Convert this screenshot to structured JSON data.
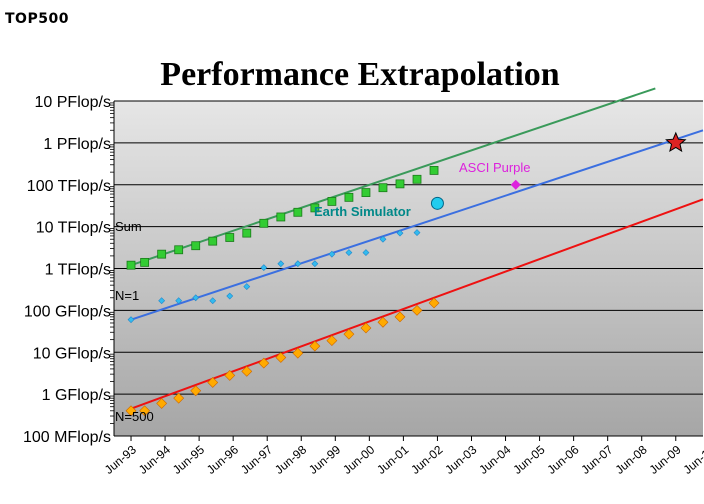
{
  "logo_text": "TOP500",
  "chart_data": {
    "type": "scatter",
    "title": "Performance Extrapolation",
    "y_scale": "log",
    "y_tick_labels": [
      "100 MFlop/s",
      "1 GFlop/s",
      "10 GFlop/s",
      "100 GFlop/s",
      "1 TFlop/s",
      "10 TFlop/s",
      "100 TFlop/s",
      "1 PFlop/s",
      "10 PFlop/s"
    ],
    "ylim_gflops": [
      0.1,
      10000000
    ],
    "x_tick_labels": [
      "Jun-93",
      "Jun-94",
      "Jun-95",
      "Jun-96",
      "Jun-97",
      "Jun-98",
      "Jun-99",
      "Jun-00",
      "Jun-01",
      "Jun-02",
      "Jun-03",
      "Jun-04",
      "Jun-05",
      "Jun-06",
      "Jun-07",
      "Jun-08",
      "Jun-09",
      "Jun-10"
    ],
    "xlim_year": [
      1993.0,
      2010.3
    ],
    "grid": true,
    "series": [
      {
        "name": "Sum",
        "color": "#3a9a5a",
        "marker": "square",
        "marker_color": "#33cc33",
        "x": [
          1993.5,
          1993.9,
          1994.4,
          1994.9,
          1995.4,
          1995.9,
          1996.4,
          1996.9,
          1997.4,
          1997.9,
          1998.4,
          1998.9,
          1999.4,
          1999.9,
          2000.4,
          2000.9,
          2001.4,
          2001.9,
          2002.4
        ],
        "values": [
          1200,
          1400,
          2200,
          2800,
          3500,
          4500,
          5500,
          7000,
          12000,
          17000,
          22000,
          28000,
          40000,
          50000,
          65000,
          85000,
          105000,
          135000,
          220000
        ],
        "trend": {
          "start": [
            1993.5,
            1200
          ],
          "end": [
            2008.9,
            20000000
          ]
        }
      },
      {
        "name": "N=1",
        "color": "#3b6fe0",
        "marker": "diamond",
        "marker_color": "#33bbee",
        "x": [
          1993.5,
          1994.4,
          1994.9,
          1995.4,
          1995.9,
          1996.4,
          1996.9,
          1997.4,
          1997.9,
          1998.4,
          1998.9,
          1999.4,
          1999.9,
          2000.4,
          2000.9,
          2001.4,
          2001.9
        ],
        "values": [
          60,
          170,
          170,
          200,
          170,
          220,
          370,
          1050,
          1300,
          1300,
          1300,
          2200,
          2400,
          2400,
          5000,
          7000,
          7200
        ],
        "trend": {
          "start": [
            1993.5,
            60
          ],
          "end": [
            2010.3,
            2000000
          ]
        }
      },
      {
        "name": "N=500",
        "color": "#ee1111",
        "marker": "diamond",
        "marker_color": "#ffaa00",
        "x": [
          1993.5,
          1993.9,
          1994.4,
          1994.9,
          1995.4,
          1995.9,
          1996.4,
          1996.9,
          1997.4,
          1997.9,
          1998.4,
          1998.9,
          1999.4,
          1999.9,
          2000.4,
          2000.9,
          2001.4,
          2001.9,
          2002.4
        ],
        "values": [
          0.4,
          0.4,
          0.6,
          0.8,
          1.2,
          1.9,
          2.8,
          3.5,
          5.5,
          7.5,
          9.5,
          14,
          19,
          27,
          38,
          52,
          70,
          100,
          150
        ],
        "trend": {
          "start": [
            1993.5,
            0.45
          ],
          "end": [
            2010.3,
            45000
          ]
        }
      }
    ],
    "annotations": [
      {
        "label": "Earth Simulator",
        "x": 2002.5,
        "value": 36000,
        "marker": "circle",
        "color": "#008888",
        "marker_color": "#22ccee"
      },
      {
        "label": "ASCI Purple",
        "x": 2004.8,
        "value": 100000,
        "marker": "diamond",
        "color": "#dd22dd",
        "marker_color": "#dd22dd"
      },
      {
        "label": "",
        "x": 2009.5,
        "value": 1000000,
        "marker": "star",
        "color": "#cc1111",
        "marker_color": "#dd2222"
      }
    ]
  }
}
